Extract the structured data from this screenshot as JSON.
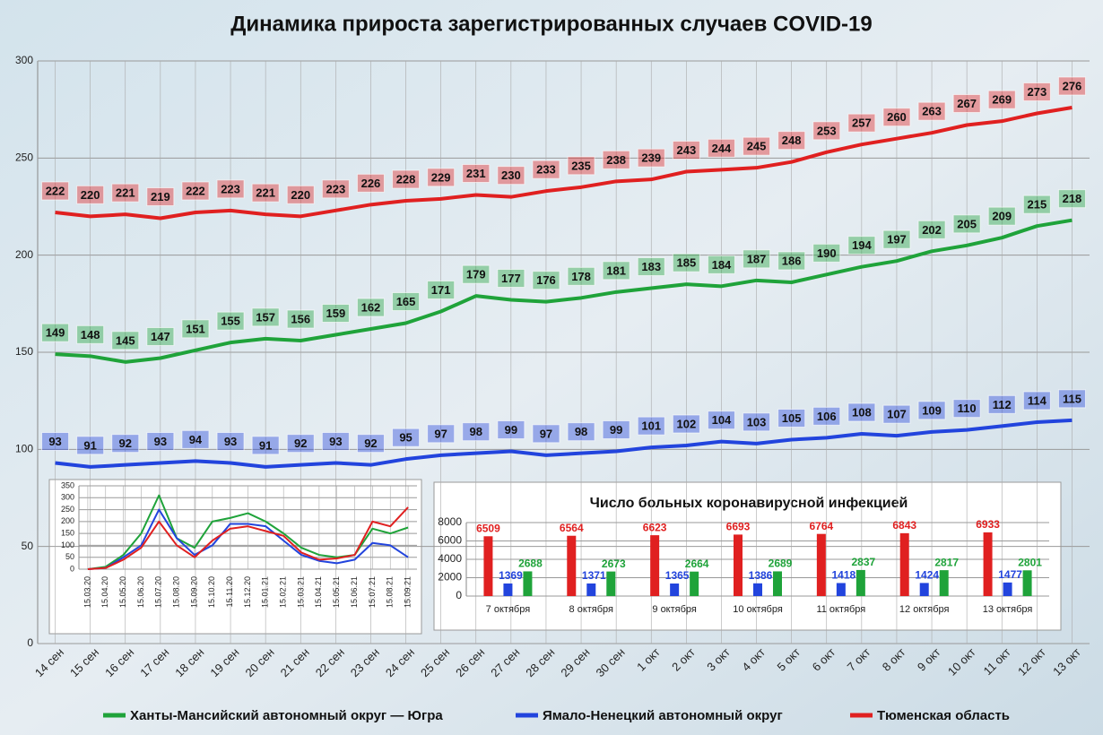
{
  "chart_data": [
    {
      "type": "line",
      "title": "Динамика прироста зарегистрированных случаев COVID-19",
      "categories": [
        "14 сен",
        "15 сен",
        "16 сен",
        "17 сен",
        "18 сен",
        "19 сен",
        "20 сен",
        "21 сен",
        "22 сен",
        "23 сен",
        "24 сен",
        "25 сен",
        "26 сен",
        "27 сен",
        "28 сен",
        "29 сен",
        "30 сен",
        "1 окт",
        "2 окт",
        "3 окт",
        "4 окт",
        "5 окт",
        "6 окт",
        "7 окт",
        "8 окт",
        "9 окт",
        "10 окт",
        "11 окт",
        "12 окт",
        "13 окт"
      ],
      "series": [
        {
          "name": "Ханты-Мансийский автономный округ — Югра",
          "color": "#1fa33a",
          "values": [
            149,
            148,
            145,
            147,
            151,
            155,
            157,
            156,
            159,
            162,
            165,
            171,
            179,
            177,
            176,
            178,
            181,
            183,
            185,
            184,
            187,
            186,
            190,
            194,
            197,
            202,
            205,
            209,
            215,
            218
          ]
        },
        {
          "name": "Ямало-Ненецкий автономный округ",
          "color": "#2244dd",
          "values": [
            93,
            91,
            92,
            93,
            94,
            93,
            91,
            92,
            93,
            92,
            95,
            97,
            98,
            99,
            97,
            98,
            99,
            101,
            102,
            104,
            103,
            105,
            106,
            108,
            107,
            109,
            110,
            112,
            114,
            115
          ]
        },
        {
          "name": "Тюменская область",
          "color": "#e02020",
          "values": [
            222,
            220,
            221,
            219,
            222,
            223,
            221,
            220,
            223,
            226,
            228,
            229,
            231,
            230,
            233,
            235,
            238,
            239,
            243,
            244,
            245,
            248,
            253,
            257,
            260,
            263,
            267,
            269,
            273,
            276
          ]
        }
      ],
      "ylim": [
        0,
        300
      ],
      "yticks": [
        0,
        50,
        100,
        150,
        200,
        250,
        300
      ],
      "grid": true,
      "data_labels": true,
      "legend": "bottom"
    },
    {
      "type": "line",
      "categories": [
        "15.03.20",
        "15.04.20",
        "15.05.20",
        "15.06.20",
        "15.07.20",
        "15.08.20",
        "15.09.20",
        "15.10.20",
        "15.11.20",
        "15.12.20",
        "15.01.21",
        "15.02.21",
        "15.03.21",
        "15.04.21",
        "15.05.21",
        "15.06.21",
        "15.07.21",
        "15.08.21",
        "15.09.21"
      ],
      "series": [
        {
          "color": "#1fa33a",
          "values": [
            0,
            10,
            60,
            150,
            310,
            130,
            90,
            200,
            215,
            235,
            200,
            150,
            90,
            60,
            50,
            60,
            170,
            150,
            175
          ]
        },
        {
          "color": "#2244dd",
          "values": [
            0,
            5,
            50,
            100,
            250,
            130,
            60,
            100,
            190,
            190,
            180,
            120,
            60,
            35,
            25,
            40,
            110,
            100,
            50
          ]
        },
        {
          "color": "#e02020",
          "values": [
            0,
            5,
            40,
            90,
            200,
            100,
            50,
            120,
            170,
            180,
            160,
            140,
            70,
            40,
            45,
            60,
            200,
            180,
            260
          ]
        }
      ],
      "ylim": [
        0,
        350
      ],
      "yticks": [
        0,
        50,
        100,
        150,
        200,
        250,
        300,
        350
      ],
      "grid": true,
      "data_labels": false
    },
    {
      "type": "bar",
      "title": "Число больных коронавирусной  инфекцией",
      "categories": [
        "7 октября",
        "8 октября",
        "9 октября",
        "10 октября",
        "11 октября",
        "12 октября",
        "13 октября"
      ],
      "series": [
        {
          "color": "#e02020",
          "values": [
            6509,
            6564,
            6623,
            6693,
            6764,
            6843,
            6933
          ]
        },
        {
          "color": "#2244dd",
          "values": [
            1369,
            1371,
            1365,
            1386,
            1418,
            1424,
            1477
          ]
        },
        {
          "color": "#1fa33a",
          "values": [
            2688,
            2673,
            2664,
            2689,
            2837,
            2817,
            2801
          ]
        }
      ],
      "ylim": [
        0,
        8000
      ],
      "yticks": [
        0,
        2000,
        4000,
        6000,
        8000
      ],
      "grid": true,
      "data_labels": true
    }
  ]
}
